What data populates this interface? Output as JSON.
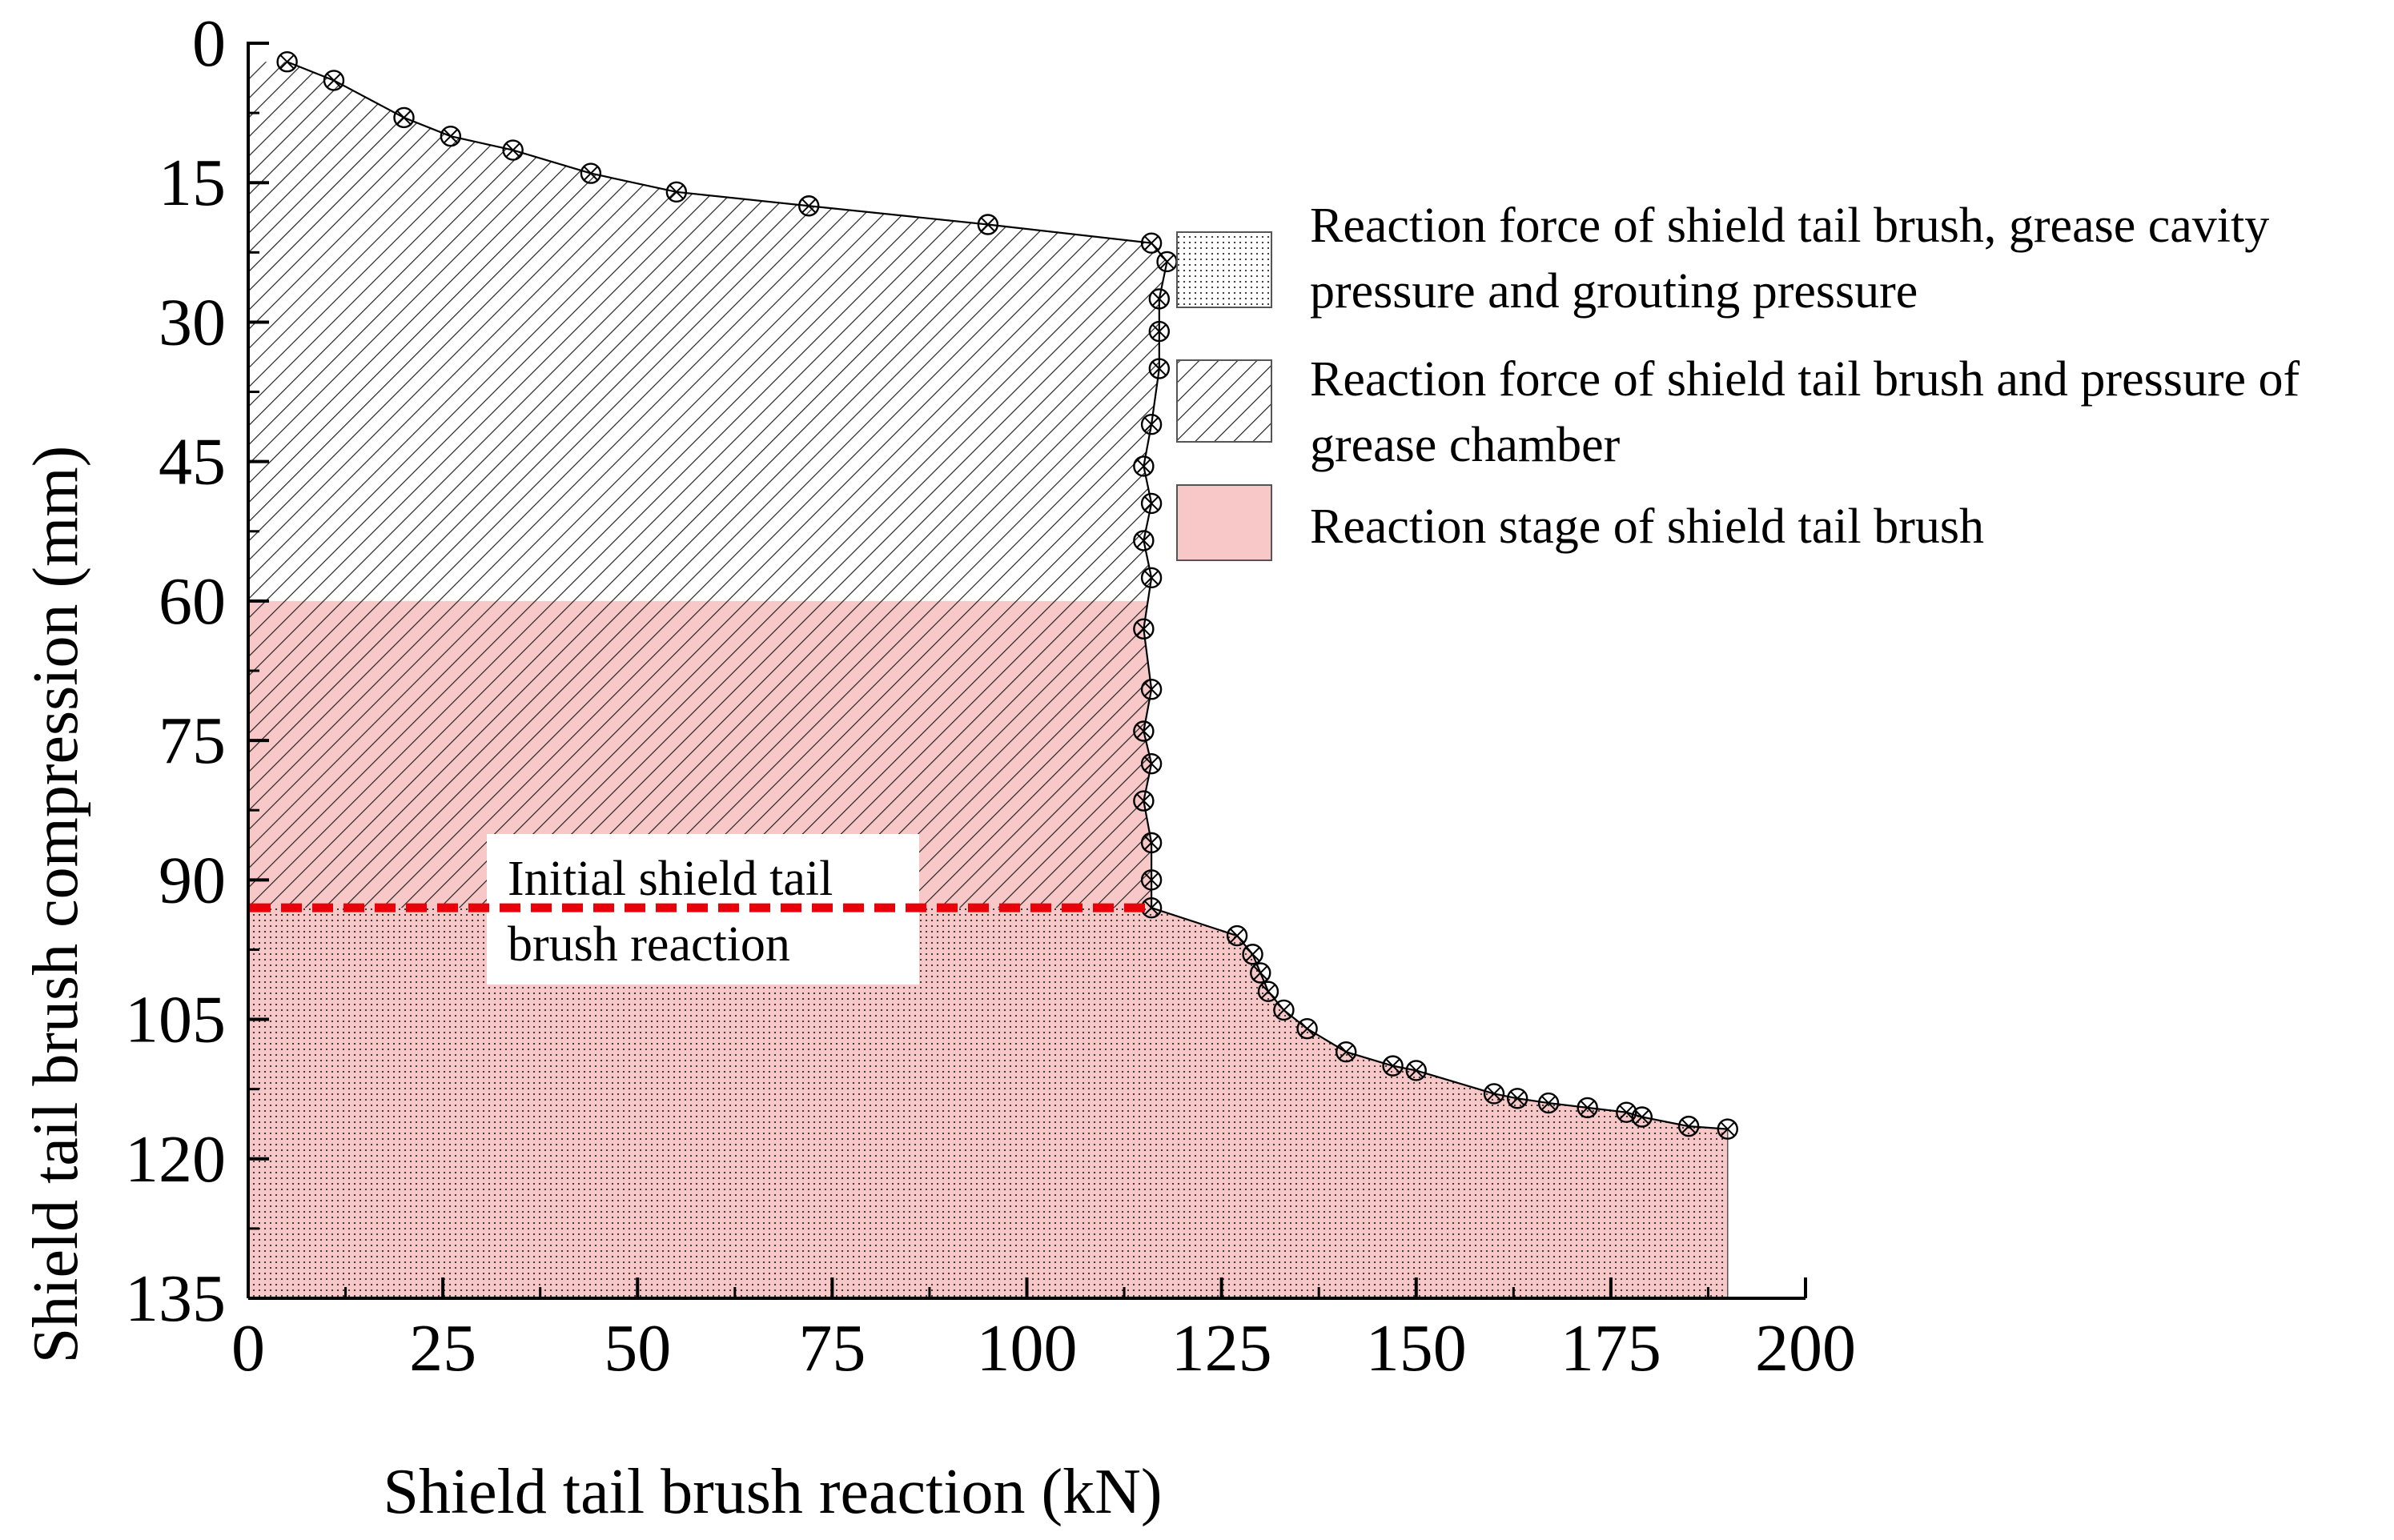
{
  "chart_data": {
    "type": "area",
    "xlabel": "Shield tail brush reaction  (kN)",
    "ylabel": "Shield tail brush compression  (mm)",
    "xlim": [
      0,
      200
    ],
    "ylim": [
      0,
      135
    ],
    "y_inverted": true,
    "x_ticks": [
      0,
      25,
      50,
      75,
      100,
      125,
      150,
      175,
      200
    ],
    "y_ticks": [
      0,
      15,
      30,
      45,
      60,
      75,
      90,
      105,
      120,
      135
    ],
    "grid": false,
    "legend_position": "right",
    "series": [
      {
        "marker": "circle-x",
        "color": "#000000",
        "x": [
          5,
          11,
          20,
          26,
          34,
          44,
          55,
          72,
          95,
          116,
          118,
          117,
          117,
          117,
          116,
          115,
          116,
          115,
          116,
          115,
          116,
          115,
          116,
          115,
          116,
          116,
          116,
          127,
          129,
          130,
          131,
          133,
          136,
          141,
          147,
          150,
          160,
          163,
          167,
          172,
          177,
          179,
          185,
          190
        ],
        "y": [
          2,
          4,
          8,
          10,
          11.5,
          14,
          16,
          17.5,
          19.5,
          21.5,
          23.5,
          27.5,
          31,
          35,
          41,
          45.5,
          49.5,
          53.5,
          57.5,
          63,
          69.5,
          74,
          77.5,
          81.5,
          86,
          90,
          93,
          96,
          98,
          100,
          102,
          104,
          106,
          108.5,
          110,
          110.5,
          113,
          113.5,
          114,
          114.5,
          115,
          115.5,
          116.5,
          116.8
        ]
      }
    ],
    "regions": [
      {
        "label": "Reaction force of shield tail brush, grease cavity pressure and grouting pressure",
        "pattern": "dotted"
      },
      {
        "label": "Reaction force of shield tail brush and pressure of grease chamber",
        "pattern": "hatched"
      },
      {
        "label": "Reaction stage of shield tail brush",
        "color": "#f8c8c8"
      }
    ],
    "region_bounds": {
      "pink_from_y": 60,
      "dotted_from_y": 93
    },
    "reference_line": {
      "y": 93,
      "color": "#e8000a",
      "style": "dashed",
      "x_end": 116
    },
    "annotation": {
      "line1": "Initial shield tail",
      "line2": "brush reaction"
    }
  },
  "legend": {
    "item1_line1": "Reaction force of shield tail brush, grease cavity",
    "item1_line2": "pressure and grouting pressure",
    "item2_line1": "Reaction force of shield tail brush and pressure of",
    "item2_line2": "grease chamber",
    "item3_line1": "Reaction stage of shield tail brush"
  },
  "colors": {
    "pink": "#f8c8c8",
    "red_line": "#e8000a",
    "ink": "#000000"
  }
}
